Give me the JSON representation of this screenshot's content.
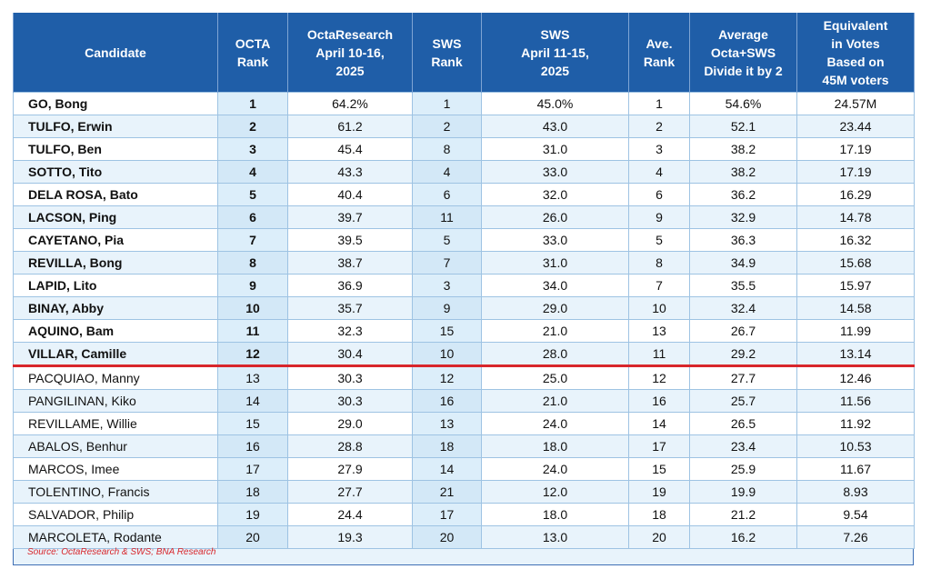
{
  "table": {
    "headers": [
      "Candidate",
      "OCTA\nRank",
      "OctaResearch\nApril 10-16,\n2025",
      "SWS\nRank",
      "SWS\nApril 11-15,\n2025",
      "Ave.\nRank",
      "Average\nOcta+SWS\nDivide it by 2",
      "Equivalent\nin Votes\nBased on\n45M voters"
    ],
    "rows": [
      [
        "GO, Bong",
        "1",
        "64.2%",
        "1",
        "45.0%",
        "1",
        "54.6%",
        "24.57M"
      ],
      [
        "TULFO, Erwin",
        "2",
        "61.2",
        "2",
        "43.0",
        "2",
        "52.1",
        "23.44"
      ],
      [
        "TULFO, Ben",
        "3",
        "45.4",
        "8",
        "31.0",
        "3",
        "38.2",
        "17.19"
      ],
      [
        "SOTTO, Tito",
        "4",
        "43.3",
        "4",
        "33.0",
        "4",
        "38.2",
        "17.19"
      ],
      [
        "DELA ROSA, Bato",
        "5",
        "40.4",
        "6",
        "32.0",
        "6",
        "36.2",
        "16.29"
      ],
      [
        "LACSON, Ping",
        "6",
        "39.7",
        "11",
        "26.0",
        "9",
        "32.9",
        "14.78"
      ],
      [
        "CAYETANO, Pia",
        "7",
        "39.5",
        "5",
        "33.0",
        "5",
        "36.3",
        "16.32"
      ],
      [
        "REVILLA, Bong",
        "8",
        "38.7",
        "7",
        "31.0",
        "8",
        "34.9",
        "15.68"
      ],
      [
        "LAPID, Lito",
        "9",
        "36.9",
        "3",
        "34.0",
        "7",
        "35.5",
        "15.97"
      ],
      [
        "BINAY, Abby",
        "10",
        "35.7",
        "9",
        "29.0",
        "10",
        "32.4",
        "14.58"
      ],
      [
        "AQUINO, Bam",
        "11",
        "32.3",
        "15",
        "21.0",
        "13",
        "26.7",
        "11.99"
      ],
      [
        "VILLAR, Camille",
        "12",
        "30.4",
        "10",
        "28.0",
        "11",
        "29.2",
        "13.14"
      ],
      [
        "PACQUIAO, Manny",
        "13",
        "30.3",
        "12",
        "25.0",
        "12",
        "27.7",
        "12.46"
      ],
      [
        "PANGILINAN, Kiko",
        "14",
        "30.3",
        "16",
        "21.0",
        "16",
        "25.7",
        "11.56"
      ],
      [
        "REVILLAME, Willie",
        "15",
        "29.0",
        "13",
        "24.0",
        "14",
        "26.5",
        "11.92"
      ],
      [
        "ABALOS, Benhur",
        "16",
        "28.8",
        "18",
        "18.0",
        "17",
        "23.4",
        "10.53"
      ],
      [
        "MARCOS, Imee",
        "17",
        "27.9",
        "14",
        "24.0",
        "15",
        "25.9",
        "11.67"
      ],
      [
        "TOLENTINO, Francis",
        "18",
        "27.7",
        "21",
        "12.0",
        "19",
        "19.9",
        "8.93"
      ],
      [
        "SALVADOR, Philip",
        "19",
        "24.4",
        "17",
        "18.0",
        "18",
        "21.2",
        "9.54"
      ],
      [
        "MARCOLETA, Rodante",
        "20",
        "19.3",
        "20",
        "13.0",
        "20",
        "16.2",
        "7.26"
      ]
    ]
  },
  "source": "Source: OctaResearch & SWS; BNA Research",
  "colors": {
    "header_bg": "#1f5ea8",
    "cutoff_line": "#d8262b",
    "row_alt": "#e8f3fb",
    "source_text": "#d8262b"
  }
}
